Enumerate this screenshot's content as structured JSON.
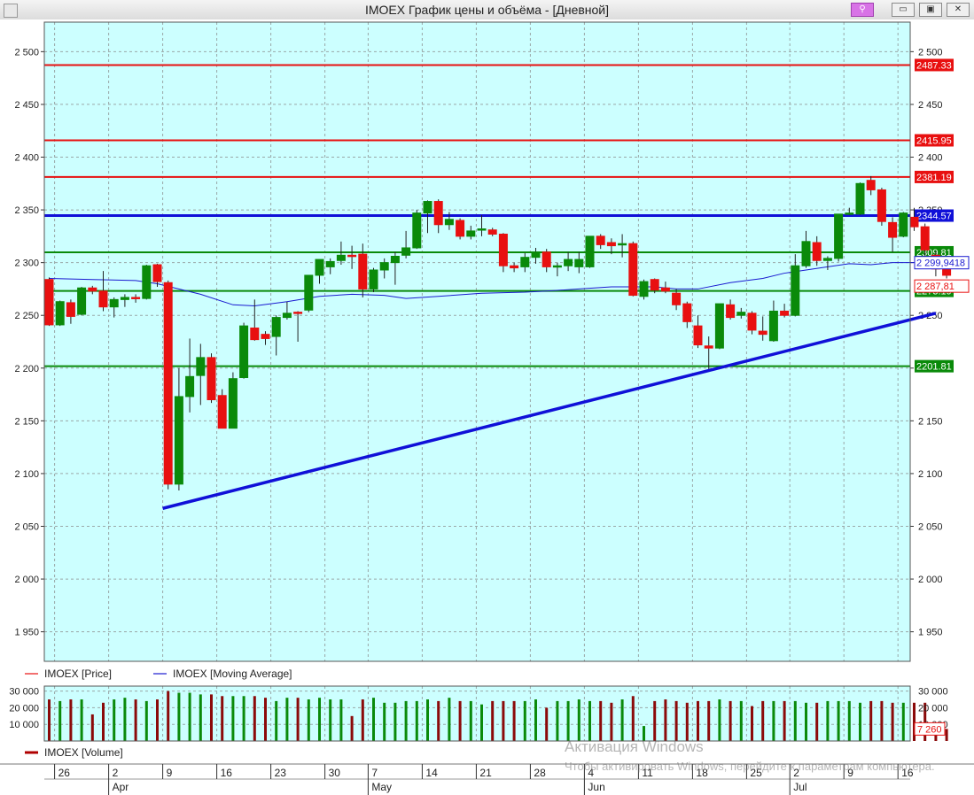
{
  "window": {
    "title": "IMOEX График цены и объёма - [Дневной]",
    "buttons": {
      "link": "⚲",
      "minimize": "▭",
      "restore": "▣",
      "close": "✕"
    }
  },
  "watermark": {
    "title": "Активация Windows",
    "text": "Чтобы активировать Windows, перейдите к параметрам компьютера."
  },
  "colors": {
    "background": "#ccffff",
    "grid": "#9aa8a8",
    "up_candle": "#0a8a0a",
    "down_candle": "#e81010",
    "moving_average": "#1a1ad0",
    "resistance_line": "#e81010",
    "support_line": "#0a8a0a",
    "trend_line": "#1010d8",
    "volume_up": "#0a8a0a",
    "volume_down": "#8b0a0a"
  },
  "legend": [
    {
      "label": "IMOEX [Price]",
      "color": "#e81010"
    },
    {
      "label": "IMOEX [Moving Average]",
      "color": "#1a1ad0"
    }
  ],
  "volume_legend": {
    "label": "IMOEX [Volume]",
    "color": "#b00000"
  },
  "chart_data": {
    "type": "candlestick",
    "yticks": [
      1950,
      2000,
      2050,
      2100,
      2150,
      2200,
      2250,
      2300,
      2350,
      2400,
      2450,
      2500
    ],
    "yticks_labels": [
      "1 950",
      "2 000",
      "2 050",
      "2 100",
      "2 150",
      "2 200",
      "2 250",
      "2 300",
      "2 350",
      "2 400",
      "2 450",
      "2 500"
    ],
    "ylim": [
      1922,
      2528
    ],
    "x_axis": [
      {
        "idx": 0.5,
        "label": "26"
      },
      {
        "idx": 5.5,
        "label": "2",
        "month": "Apr"
      },
      {
        "idx": 10.5,
        "label": "9"
      },
      {
        "idx": 15.5,
        "label": "16"
      },
      {
        "idx": 20.5,
        "label": "23"
      },
      {
        "idx": 25.5,
        "label": "30"
      },
      {
        "idx": 29.5,
        "label": "7",
        "month": "May"
      },
      {
        "idx": 34.5,
        "label": "14"
      },
      {
        "idx": 39.5,
        "label": "21"
      },
      {
        "idx": 44.5,
        "label": "28"
      },
      {
        "idx": 49.5,
        "label": "4",
        "month": "Jun"
      },
      {
        "idx": 54.5,
        "label": "11"
      },
      {
        "idx": 59.5,
        "label": "18"
      },
      {
        "idx": 64.5,
        "label": "25"
      },
      {
        "idx": 68.5,
        "label": "2",
        "month": "Jul"
      },
      {
        "idx": 73.5,
        "label": "9"
      },
      {
        "idx": 78.5,
        "label": "16"
      }
    ],
    "candles": [
      [
        2284,
        2286,
        2240,
        2241
      ],
      [
        2241,
        2264,
        2240,
        2263
      ],
      [
        2262,
        2265,
        2242,
        2249
      ],
      [
        2251,
        2277,
        2250,
        2276
      ],
      [
        2276,
        2278,
        2270,
        2273
      ],
      [
        2273,
        2292,
        2254,
        2258
      ],
      [
        2258,
        2267,
        2248,
        2265
      ],
      [
        2265,
        2270,
        2258,
        2267
      ],
      [
        2267,
        2270,
        2262,
        2266
      ],
      [
        2266,
        2298,
        2265,
        2297
      ],
      [
        2298,
        2299,
        2277,
        2282
      ],
      [
        2281,
        2283,
        2085,
        2090
      ],
      [
        2090,
        2200,
        2084,
        2173
      ],
      [
        2173,
        2228,
        2158,
        2192
      ],
      [
        2193,
        2223,
        2165,
        2210
      ],
      [
        2210,
        2214,
        2167,
        2170
      ],
      [
        2174,
        2180,
        2143,
        2143
      ],
      [
        2143,
        2196,
        2143,
        2190
      ],
      [
        2191,
        2243,
        2190,
        2240
      ],
      [
        2238,
        2265,
        2226,
        2227
      ],
      [
        2232,
        2235,
        2222,
        2228
      ],
      [
        2230,
        2250,
        2212,
        2248
      ],
      [
        2248,
        2263,
        2246,
        2252
      ],
      [
        2253,
        2254,
        2225,
        2252
      ],
      [
        2255,
        2287,
        2253,
        2288
      ],
      [
        2288,
        2302,
        2280,
        2303
      ],
      [
        2296,
        2304,
        2289,
        2301
      ],
      [
        2302,
        2320,
        2298,
        2307
      ],
      [
        2307,
        2316,
        2294,
        2306
      ],
      [
        2308,
        2318,
        2267,
        2275
      ],
      [
        2275,
        2295,
        2272,
        2293
      ],
      [
        2293,
        2304,
        2285,
        2300
      ],
      [
        2300,
        2310,
        2279,
        2306
      ],
      [
        2307,
        2330,
        2304,
        2314
      ],
      [
        2314,
        2350,
        2313,
        2347
      ],
      [
        2347,
        2359,
        2328,
        2358
      ],
      [
        2358,
        2360,
        2328,
        2336
      ],
      [
        2336,
        2348,
        2331,
        2341
      ],
      [
        2340,
        2342,
        2322,
        2325
      ],
      [
        2325,
        2335,
        2322,
        2330
      ],
      [
        2331,
        2345,
        2325,
        2332
      ],
      [
        2331,
        2333,
        2325,
        2327
      ],
      [
        2327,
        2328,
        2291,
        2297
      ],
      [
        2297,
        2300,
        2291,
        2295
      ],
      [
        2296,
        2309,
        2291,
        2305
      ],
      [
        2305,
        2314,
        2299,
        2310
      ],
      [
        2310,
        2313,
        2291,
        2296
      ],
      [
        2297,
        2300,
        2287,
        2297
      ],
      [
        2297,
        2310,
        2292,
        2303
      ],
      [
        2296,
        2310,
        2290,
        2303
      ],
      [
        2296,
        2325,
        2295,
        2325
      ],
      [
        2325,
        2327,
        2313,
        2317
      ],
      [
        2319,
        2323,
        2308,
        2316
      ],
      [
        2317,
        2327,
        2305,
        2318
      ],
      [
        2318,
        2320,
        2268,
        2269
      ],
      [
        2268,
        2284,
        2265,
        2282
      ],
      [
        2284,
        2285,
        2271,
        2274
      ],
      [
        2276,
        2282,
        2271,
        2273
      ],
      [
        2271,
        2275,
        2255,
        2260
      ],
      [
        2261,
        2263,
        2238,
        2244
      ],
      [
        2240,
        2250,
        2219,
        2222
      ],
      [
        2221,
        2230,
        2199,
        2219
      ],
      [
        2219,
        2259,
        2218,
        2261
      ],
      [
        2260,
        2265,
        2246,
        2248
      ],
      [
        2250,
        2257,
        2247,
        2253
      ],
      [
        2252,
        2254,
        2232,
        2236
      ],
      [
        2235,
        2249,
        2226,
        2232
      ],
      [
        2226,
        2264,
        2225,
        2254
      ],
      [
        2254,
        2261,
        2248,
        2250
      ],
      [
        2250,
        2308,
        2249,
        2297
      ],
      [
        2297,
        2330,
        2295,
        2320
      ],
      [
        2319,
        2325,
        2297,
        2302
      ],
      [
        2302,
        2306,
        2293,
        2304
      ],
      [
        2304,
        2345,
        2301,
        2346
      ],
      [
        2346,
        2352,
        2345,
        2347
      ],
      [
        2346,
        2376,
        2345,
        2375
      ],
      [
        2378,
        2382,
        2364,
        2369
      ],
      [
        2369,
        2371,
        2335,
        2339
      ],
      [
        2338,
        2343,
        2310,
        2324
      ],
      [
        2325,
        2348,
        2324,
        2347
      ],
      [
        2343,
        2352,
        2330,
        2334
      ],
      [
        2334,
        2337,
        2303,
        2312
      ],
      [
        2307,
        2311,
        2287,
        2294
      ],
      [
        2295,
        2298,
        2285,
        2288
      ]
    ],
    "moving_average": [
      [
        0,
        2285
      ],
      [
        4,
        2284
      ],
      [
        8,
        2283
      ],
      [
        10,
        2280
      ],
      [
        14,
        2270
      ],
      [
        17,
        2260
      ],
      [
        19,
        2259
      ],
      [
        22,
        2263
      ],
      [
        25,
        2268
      ],
      [
        28,
        2270
      ],
      [
        31,
        2269
      ],
      [
        33,
        2266
      ],
      [
        36,
        2268
      ],
      [
        40,
        2271
      ],
      [
        44,
        2272
      ],
      [
        46,
        2273
      ],
      [
        49,
        2275
      ],
      [
        52,
        2277
      ],
      [
        56,
        2277
      ],
      [
        58,
        2275
      ],
      [
        60,
        2275
      ],
      [
        63,
        2281
      ],
      [
        66,
        2285
      ],
      [
        68,
        2290
      ],
      [
        70,
        2293
      ],
      [
        72,
        2296
      ],
      [
        74,
        2299
      ],
      [
        76,
        2298
      ],
      [
        78,
        2300
      ],
      [
        80,
        2300
      ],
      [
        82.5,
        2299.9
      ]
    ],
    "horizontal_lines": [
      {
        "value": 2487.33,
        "label": "2487.33",
        "color": "#e81010"
      },
      {
        "value": 2415.95,
        "label": "2415.95",
        "color": "#e81010"
      },
      {
        "value": 2381.19,
        "label": "2381.19",
        "color": "#e81010"
      },
      {
        "value": 2344.57,
        "label": "2344.57",
        "color": "#1010d8"
      },
      {
        "value": 2309.81,
        "label": "2309.81",
        "color": "#0a8a0a"
      },
      {
        "value": 2273.19,
        "label": "2273.19",
        "color": "#0a8a0a"
      },
      {
        "value": 2201.81,
        "label": "2201.81",
        "color": "#0a8a0a"
      }
    ],
    "trend_line": {
      "start": [
        10.5,
        2067
      ],
      "end": [
        82,
        2252
      ]
    },
    "price_labels": [
      {
        "value": 2299.9418,
        "label": "2 299,9418",
        "color": "#1a1ad0"
      },
      {
        "value": 2287.81,
        "label": "2 287,81",
        "color": "#e81010"
      }
    ],
    "volume": {
      "ylim": [
        0,
        33000
      ],
      "yticks": [
        10000,
        20000,
        30000
      ],
      "yticks_labels": [
        "10 000",
        "20 000",
        "30 000"
      ],
      "last_label": "7 260",
      "values": [
        25000,
        24000,
        25000,
        25000,
        16000,
        23000,
        25000,
        26000,
        25000,
        24000,
        25000,
        30000,
        29000,
        29000,
        28000,
        28000,
        27000,
        27000,
        27000,
        27000,
        26000,
        24000,
        26000,
        26000,
        25000,
        26000,
        25000,
        25000,
        15000,
        25000,
        26000,
        23000,
        23000,
        24000,
        24000,
        25000,
        24000,
        26000,
        24000,
        24000,
        22000,
        24000,
        24000,
        24000,
        24000,
        25000,
        20000,
        24000,
        24000,
        25000,
        24000,
        24000,
        23000,
        25000,
        27000,
        9000,
        24000,
        25000,
        24000,
        23000,
        24000,
        24000,
        25000,
        24000,
        24000,
        21000,
        24000,
        24000,
        24000,
        24000,
        23000,
        23000,
        24000,
        24000,
        24000,
        23000,
        24000,
        24000,
        23000,
        23000,
        23000,
        23000,
        5000,
        7260
      ]
    }
  }
}
